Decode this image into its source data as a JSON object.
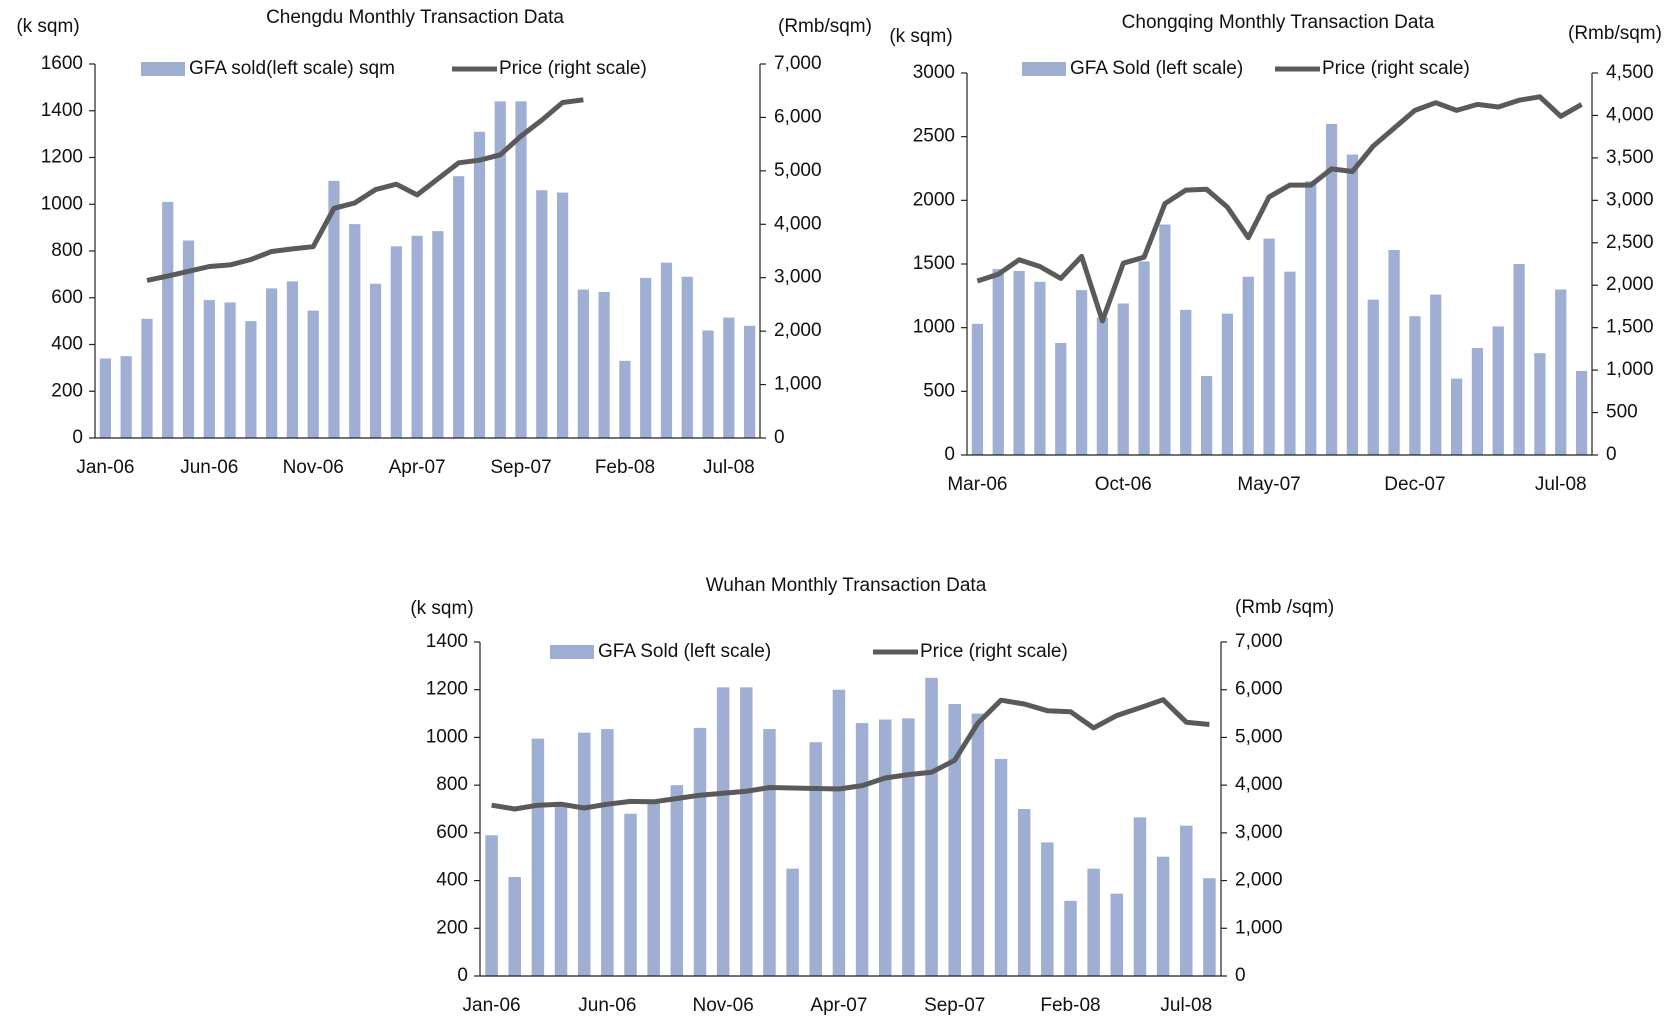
{
  "chart_data": [
    {
      "type": "bar-line",
      "title": "Chengdu Monthly Transaction Data",
      "y_label": "(k sqm)",
      "y2_label": "(Rmb/sqm)",
      "categories": [
        "Jan-06",
        null,
        null,
        null,
        null,
        "Jun-06",
        null,
        null,
        null,
        null,
        "Nov-06",
        null,
        null,
        null,
        null,
        "Apr-07",
        null,
        null,
        null,
        null,
        "Sep-07",
        null,
        null,
        null,
        null,
        "Feb-08",
        null,
        null,
        null,
        null,
        "Jul-08",
        null
      ],
      "series": [
        {
          "name": "GFA sold(left scale) sqm",
          "color": "#9eafd3",
          "type": "bar",
          "values": [
            340,
            350,
            510,
            1010,
            845,
            590,
            580,
            500,
            640,
            670,
            545,
            1100,
            915,
            660,
            820,
            865,
            885,
            1120,
            1310,
            1440,
            1440,
            1060,
            1050,
            635,
            625,
            330,
            685,
            750,
            690,
            460,
            515,
            480
          ]
        },
        {
          "name": "Price (right scale)",
          "color": "#5a5a5a",
          "type": "line",
          "axis": "y2",
          "values": [
            null,
            null,
            2950,
            3030,
            3120,
            3210,
            3240,
            3340,
            3490,
            3540,
            3580,
            4300,
            4400,
            4650,
            4750,
            4550,
            4850,
            5150,
            5200,
            5300,
            5650,
            5950,
            6280,
            6330,
            null,
            null,
            null,
            null,
            null,
            null,
            null,
            null
          ]
        }
      ],
      "ylim": [
        0,
        1600
      ],
      "yticks": [
        0,
        200,
        400,
        600,
        800,
        1000,
        1200,
        1400,
        1600
      ],
      "y2lim": [
        0,
        7000
      ],
      "y2ticks": [
        0,
        {
          "value": 1000,
          "label": "1,000"
        },
        {
          "value": 2000,
          "label": "2,000"
        },
        {
          "value": 3000,
          "label": "3,000"
        },
        {
          "value": 4000,
          "label": "4,000"
        },
        {
          "value": 5000,
          "label": "5,000"
        },
        {
          "value": 6000,
          "label": "6,000"
        },
        {
          "value": 7000,
          "label": "7,000"
        }
      ]
    },
    {
      "type": "bar-line",
      "title": "Chongqing Monthly Transaction Data",
      "y_label": "(k sqm)",
      "y2_label": "(Rmb/sqm)",
      "categories": [
        "Mar-06",
        null,
        null,
        null,
        null,
        null,
        null,
        "Oct-06",
        null,
        null,
        null,
        null,
        null,
        null,
        "May-07",
        null,
        null,
        null,
        null,
        null,
        null,
        "Dec-07",
        null,
        null,
        null,
        null,
        null,
        null,
        "Jul-08",
        null
      ],
      "series": [
        {
          "name": "GFA Sold (left scale)",
          "color": "#9eafd3",
          "type": "bar",
          "values": [
            1030,
            1460,
            1445,
            1360,
            880,
            1295,
            1080,
            1190,
            1520,
            1810,
            1140,
            620,
            1110,
            1400,
            1700,
            1440,
            2150,
            2600,
            2360,
            1220,
            1610,
            1090,
            1260,
            600,
            840,
            1010,
            1500,
            800,
            1300,
            660
          ]
        },
        {
          "name": "Price (right scale)",
          "color": "#5a5a5a",
          "type": "line",
          "axis": "y2",
          "values": [
            2050,
            2130,
            2300,
            2220,
            2080,
            2340,
            1580,
            2260,
            2330,
            2960,
            3120,
            3130,
            2920,
            2560,
            3040,
            3180,
            3180,
            3370,
            3340,
            3640,
            3850,
            4060,
            4150,
            4060,
            4130,
            4100,
            4180,
            4220,
            3990,
            4130
          ]
        }
      ],
      "ylim": [
        0,
        3000
      ],
      "yticks": [
        0,
        500,
        1000,
        1500,
        2000,
        2500,
        3000
      ],
      "y2lim": [
        0,
        4500
      ],
      "y2ticks": [
        0,
        500,
        {
          "value": 1000,
          "label": "1,000"
        },
        {
          "value": 1500,
          "label": "1,500"
        },
        {
          "value": 2000,
          "label": "2,000"
        },
        {
          "value": 2500,
          "label": "2,500"
        },
        {
          "value": 3000,
          "label": "3,000"
        },
        {
          "value": 3500,
          "label": "3,500"
        },
        {
          "value": 4000,
          "label": "4,000"
        },
        {
          "value": 4500,
          "label": "4,500"
        }
      ]
    },
    {
      "type": "bar-line",
      "title": "Wuhan Monthly Transaction Data",
      "y_label": "(k sqm)",
      "y2_label": "(Rmb /sqm)",
      "categories": [
        "Jan-06",
        null,
        null,
        null,
        null,
        "Jun-06",
        null,
        null,
        null,
        null,
        "Nov-06",
        null,
        null,
        null,
        null,
        "Apr-07",
        null,
        null,
        null,
        null,
        "Sep-07",
        null,
        null,
        null,
        null,
        "Feb-08",
        null,
        null,
        null,
        null,
        "Jul-08",
        null
      ],
      "series": [
        {
          "name": "GFA Sold (left scale)",
          "color": "#9eafd3",
          "type": "bar",
          "values": [
            590,
            415,
            995,
            720,
            1020,
            1035,
            680,
            730,
            800,
            1040,
            1210,
            1210,
            1035,
            450,
            980,
            1200,
            1060,
            1075,
            1080,
            1250,
            1140,
            1100,
            910,
            700,
            560,
            315,
            450,
            345,
            665,
            500,
            630,
            410
          ]
        },
        {
          "name": "Price (right scale)",
          "color": "#5a5a5a",
          "type": "line",
          "axis": "y2",
          "values": [
            3580,
            3500,
            3580,
            3600,
            3520,
            3600,
            3660,
            3650,
            3720,
            3790,
            3830,
            3870,
            3950,
            3940,
            3930,
            3920,
            3990,
            4150,
            4220,
            4270,
            4520,
            5300,
            5780,
            5700,
            5560,
            5540,
            5200,
            5460,
            5620,
            5790,
            5320,
            5270
          ]
        }
      ],
      "ylim": [
        0,
        1400
      ],
      "yticks": [
        0,
        200,
        400,
        600,
        800,
        1000,
        1200,
        1400
      ],
      "y2lim": [
        0,
        7000
      ],
      "y2ticks": [
        0,
        {
          "value": 1000,
          "label": "1,000"
        },
        {
          "value": 2000,
          "label": "2,000"
        },
        {
          "value": 3000,
          "label": "3,000"
        },
        {
          "value": 4000,
          "label": "4,000"
        },
        {
          "value": 5000,
          "label": "5,000"
        },
        {
          "value": 6000,
          "label": "6,000"
        },
        {
          "value": 7000,
          "label": "7,000"
        }
      ]
    }
  ]
}
